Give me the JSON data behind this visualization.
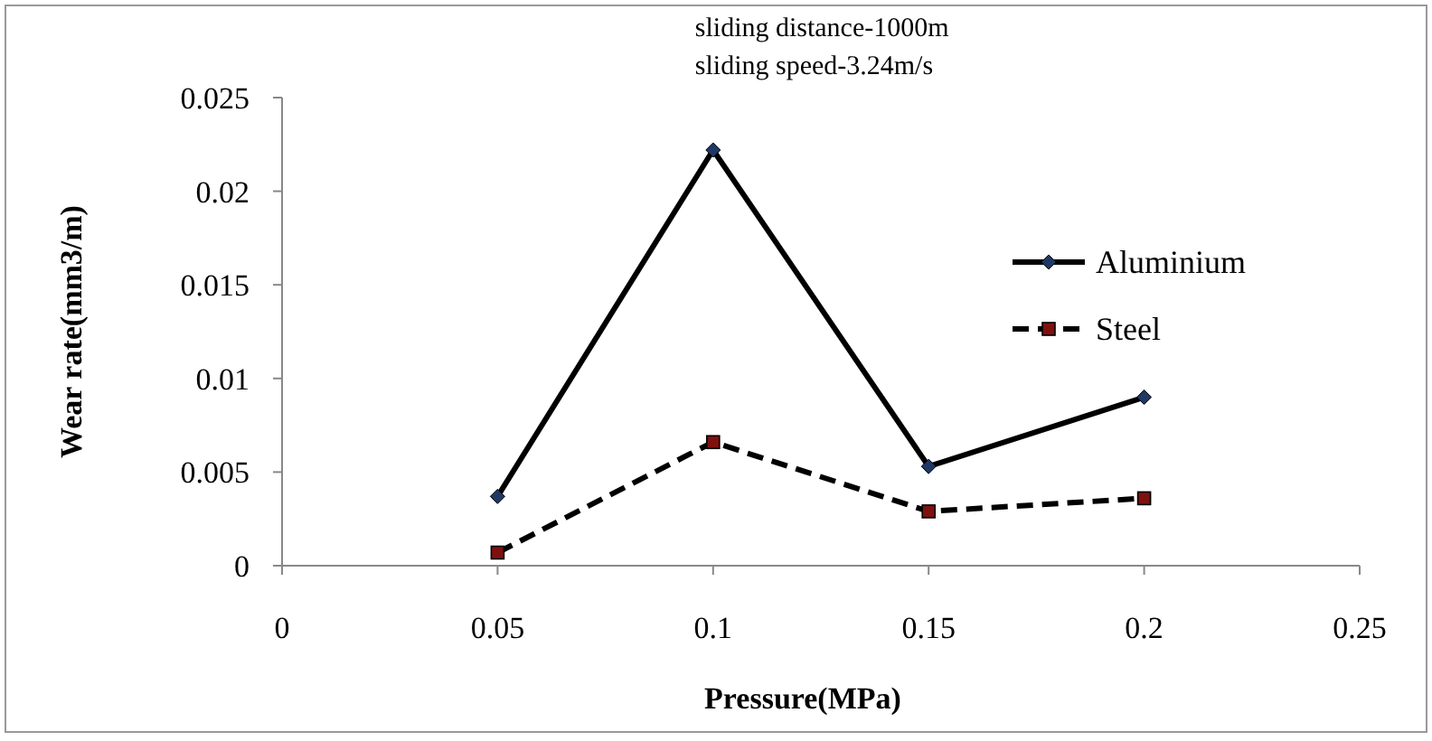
{
  "chart_data": {
    "type": "line",
    "xlabel": "Pressure(MPa)",
    "ylabel": "Wear rate(mm3/m)",
    "annotations": [
      "sliding distance-1000m",
      "sliding speed-3.24m/s"
    ],
    "x": [
      0.05,
      0.1,
      0.15,
      0.2
    ],
    "series": [
      {
        "name": "Aluminium",
        "color": "#000000",
        "values": [
          0.0037,
          0.0222,
          0.0053,
          0.009
        ],
        "marker": "diamond",
        "line_style": "solid"
      },
      {
        "name": "Steel",
        "color": "#000000",
        "values": [
          0.0007,
          0.0066,
          0.0029,
          0.0036
        ],
        "marker": "square",
        "line_style": "dashed"
      }
    ],
    "xlim": [
      0,
      0.25
    ],
    "xticks": [
      0,
      0.05,
      0.1,
      0.15,
      0.2,
      0.25
    ],
    "ylim": [
      0,
      0.025
    ],
    "yticks": [
      0,
      0.005,
      0.01,
      0.015,
      0.02,
      0.025
    ],
    "grid": false,
    "legend": "right"
  }
}
